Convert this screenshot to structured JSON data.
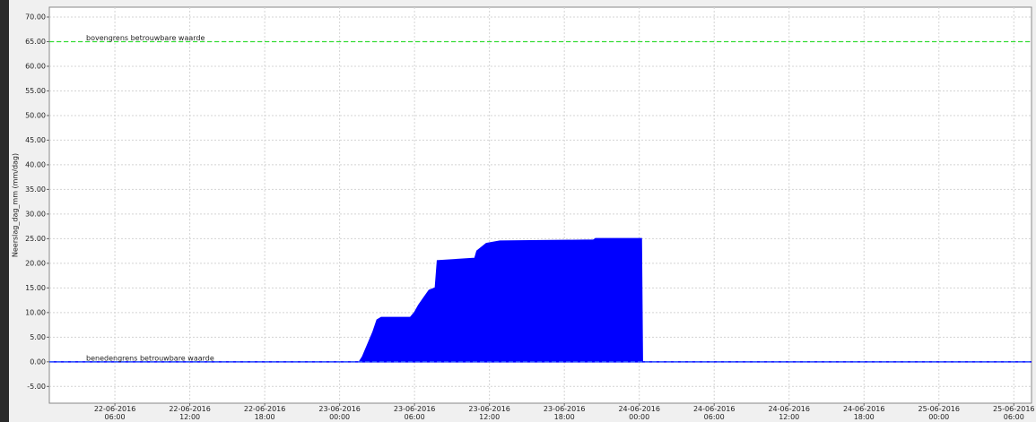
{
  "chart_data": {
    "type": "area",
    "y_label": "Neerslag_dag_mm (mm/dag)",
    "ylim": [
      -8.4,
      72
    ],
    "yticks": [
      {
        "value": -5,
        "label": "-5.00"
      },
      {
        "value": 0,
        "label": "0.00"
      },
      {
        "value": 5,
        "label": "5.00"
      },
      {
        "value": 10,
        "label": "10.00"
      },
      {
        "value": 15,
        "label": "15.00"
      },
      {
        "value": 20,
        "label": "20.00"
      },
      {
        "value": 25,
        "label": "25.00"
      },
      {
        "value": 30,
        "label": "30.00"
      },
      {
        "value": 35,
        "label": "35.00"
      },
      {
        "value": 40,
        "label": "40.00"
      },
      {
        "value": 45,
        "label": "45.00"
      },
      {
        "value": 50,
        "label": "50.00"
      },
      {
        "value": 55,
        "label": "55.00"
      },
      {
        "value": 60,
        "label": "60.00"
      },
      {
        "value": 65,
        "label": "65.00"
      },
      {
        "value": 70,
        "label": "70.00"
      }
    ],
    "xlim": [
      "2016-06-22T00:45",
      "2016-06-25T07:25"
    ],
    "xticks": [
      {
        "value": "2016-06-22T06:00",
        "label": "22-06-2016 06:00"
      },
      {
        "value": "2016-06-22T12:00",
        "label": "22-06-2016 12:00"
      },
      {
        "value": "2016-06-22T18:00",
        "label": "22-06-2016 18:00"
      },
      {
        "value": "2016-06-23T00:00",
        "label": "23-06-2016 00:00"
      },
      {
        "value": "2016-06-23T06:00",
        "label": "23-06-2016 06:00"
      },
      {
        "value": "2016-06-23T12:00",
        "label": "23-06-2016 12:00"
      },
      {
        "value": "2016-06-23T18:00",
        "label": "23-06-2016 18:00"
      },
      {
        "value": "2016-06-24T00:00",
        "label": "24-06-2016 00:00"
      },
      {
        "value": "2016-06-24T06:00",
        "label": "24-06-2016 06:00"
      },
      {
        "value": "2016-06-24T12:00",
        "label": "24-06-2016 12:00"
      },
      {
        "value": "2016-06-24T18:00",
        "label": "24-06-2016 18:00"
      },
      {
        "value": "2016-06-25T00:00",
        "label": "25-06-2016 00:00"
      },
      {
        "value": "2016-06-25T06:00",
        "label": "25-06-2016 06:00"
      }
    ],
    "grid": true,
    "x": [
      "2016-06-22T00:45",
      "2016-06-23T01:35",
      "2016-06-23T01:50",
      "2016-06-23T02:10",
      "2016-06-23T02:40",
      "2016-06-23T03:00",
      "2016-06-23T03:20",
      "2016-06-23T05:40",
      "2016-06-23T06:00",
      "2016-06-23T06:20",
      "2016-06-23T06:45",
      "2016-06-23T07:10",
      "2016-06-23T07:40",
      "2016-06-23T07:50",
      "2016-06-23T10:50",
      "2016-06-23T11:00",
      "2016-06-23T11:45",
      "2016-06-23T12:50",
      "2016-06-23T20:20",
      "2016-06-23T20:30",
      "2016-06-24T00:10",
      "2016-06-24T00:15",
      "2016-06-25T07:25"
    ],
    "series": [
      {
        "color": "#0000ff",
        "values": [
          0,
          0,
          1,
          3,
          6,
          8.5,
          9,
          9,
          10,
          11.5,
          13,
          14.5,
          15,
          20.5,
          21,
          22.5,
          24,
          24.5,
          24.7,
          25,
          25,
          0,
          0
        ]
      }
    ],
    "thresholds": [
      {
        "value": 65,
        "label": "bovengrens betrouwbare waarde",
        "color": "#33dd33"
      },
      {
        "value": 0,
        "label": "benedengrens betrouwbare waarde",
        "color": "#3366ff"
      }
    ]
  }
}
